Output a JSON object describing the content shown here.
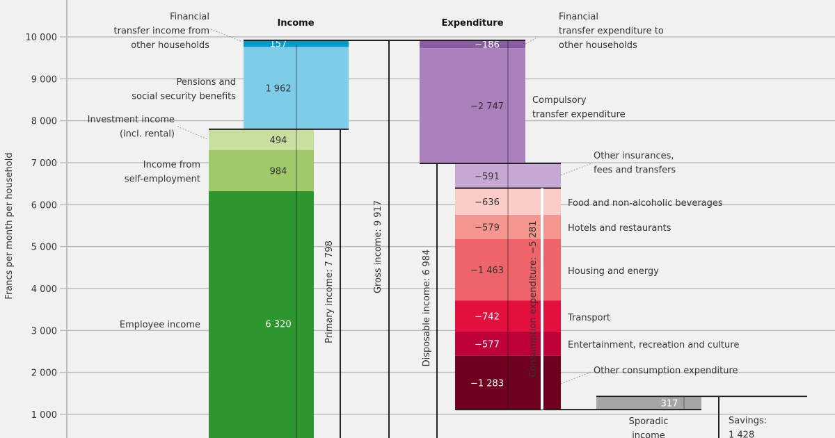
{
  "chart_data": {
    "type": "bar",
    "subtype": "waterfall",
    "ylabel": "Francs per month per household",
    "ylim": [
      0,
      10500
    ],
    "yticks": [
      1000,
      2000,
      3000,
      4000,
      5000,
      6000,
      7000,
      8000,
      9000,
      10000
    ],
    "ytick_labels": [
      "1 000",
      "2 000",
      "3 000",
      "4 000",
      "5 000",
      "6 000",
      "7 000",
      "8 000",
      "9 000",
      "10 000"
    ],
    "grid": true,
    "headers": {
      "income": "Income",
      "expenditure": "Expenditure"
    },
    "income": [
      {
        "name": "Employee income",
        "value": 6320,
        "label": "6 320",
        "color": "#2e962e"
      },
      {
        "name": "Income from self-employment",
        "value": 984,
        "label": "984",
        "color": "#a0c96a"
      },
      {
        "name": "Investment income (incl. rental)",
        "value": 494,
        "label": "494",
        "color": "#c8df9f"
      },
      {
        "name": "Pensions and social security benefits",
        "value": 1962,
        "label": "1 962",
        "color": "#7ecde8"
      },
      {
        "name": "Financial transfer income from other households",
        "value": 157,
        "label": "157",
        "color": "#0099cc"
      }
    ],
    "expenditure": [
      {
        "name": "Financial transfer expenditure to other households",
        "value": -186,
        "label": "−186",
        "color": "#8a5ca4"
      },
      {
        "name": "Compulsory transfer expenditure",
        "value": -2747,
        "label": "−2 747",
        "color": "#a97fbc"
      },
      {
        "name": "Other insurances, fees and transfers",
        "value": -591,
        "label": "−591",
        "color": "#c7a7d4"
      },
      {
        "name": "Food and non-alcoholic beverages",
        "value": -636,
        "label": "−636",
        "color": "#fccdc7"
      },
      {
        "name": "Hotels and restaurants",
        "value": -579,
        "label": "−579",
        "color": "#f4968e"
      },
      {
        "name": "Housing and energy",
        "value": -1463,
        "label": "−1 463",
        "color": "#ee646a"
      },
      {
        "name": "Transport",
        "value": -742,
        "label": "−742",
        "color": "#e30f3d"
      },
      {
        "name": "Entertainment, recreation and culture",
        "value": -577,
        "label": "−577",
        "color": "#be0038"
      },
      {
        "name": "Other consumption expenditure",
        "value": -1283,
        "label": "−1 283",
        "color": "#6f0020"
      }
    ],
    "sporadic": {
      "name": "Sporadic income",
      "value": 317,
      "label": "317",
      "color": "#a6a6a6"
    },
    "totals": {
      "primary": {
        "label": "Primary income: 7 798",
        "value": 7798
      },
      "gross": {
        "label": "Gross income: 9 917",
        "value": 9917
      },
      "disposable": {
        "label": "Disposable income: 6 984",
        "value": 6984
      },
      "consumption": {
        "label": "Consumption expenditure: −5 281",
        "value": -5281
      },
      "savings": {
        "label1": "Savings:",
        "label2": "1 428",
        "value": 1428
      }
    },
    "annotations": {
      "fin_in": [
        "Financial",
        "transfer income from",
        "other households"
      ],
      "pensions": [
        "Pensions and",
        "social security benefits"
      ],
      "invest": [
        "Investment income",
        "(incl. rental)"
      ],
      "selfemp": [
        "Income from",
        "self-employment"
      ],
      "employee": "Employee income",
      "fin_out": [
        "Financial",
        "transfer expenditure to",
        "other households"
      ],
      "compulsory": [
        "Compulsory",
        "transfer expenditure"
      ],
      "insur": [
        "Other insurances,",
        "fees and transfers"
      ],
      "food": "Food and non-alcoholic beverages",
      "hotels": "Hotels and restaurants",
      "housing": "Housing and energy",
      "transport": "Transport",
      "entertainment": "Entertainment, recreation and culture",
      "other": "Other consumption expenditure",
      "sporadic": [
        "Sporadic",
        "income"
      ]
    }
  }
}
